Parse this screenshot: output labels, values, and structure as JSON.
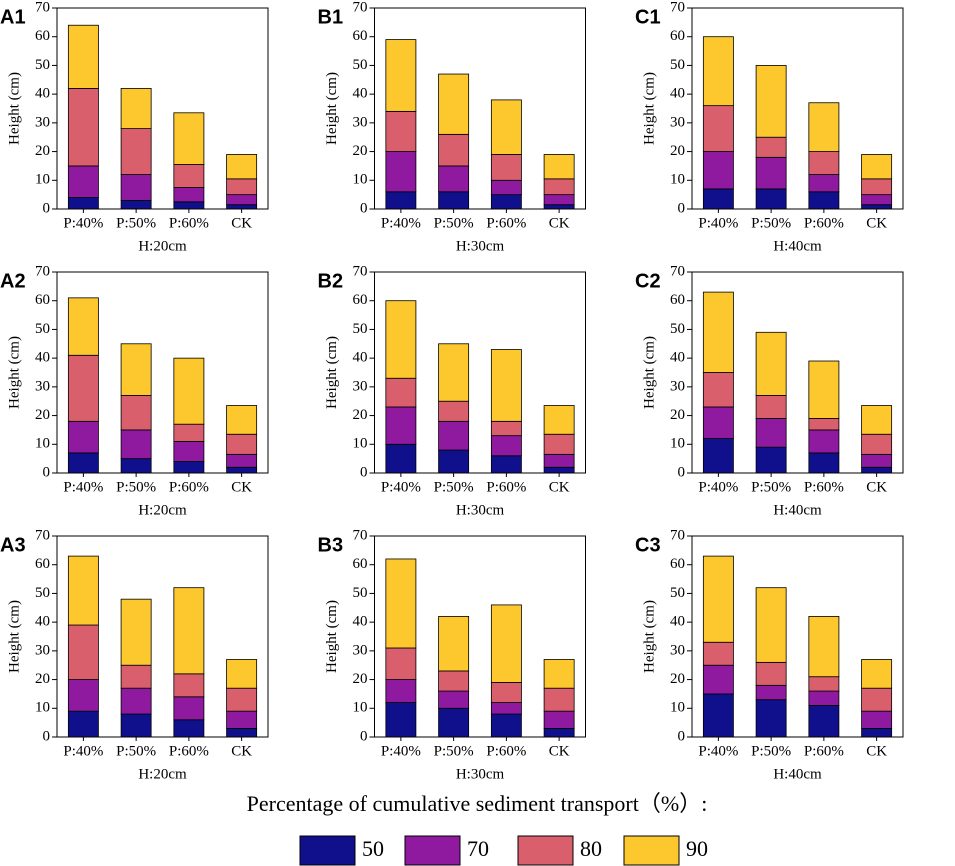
{
  "legend": {
    "title": "Percentage of cumulative sediment transport（%）:",
    "items": [
      {
        "name": "50",
        "color": "#10108c"
      },
      {
        "name": "70",
        "color": "#8f1aa0"
      },
      {
        "name": "80",
        "color": "#d95f6c"
      },
      {
        "name": "90",
        "color": "#fdc72e"
      }
    ]
  },
  "chart_data": [
    {
      "type": "bar",
      "panel": "A1",
      "ylabel": "Height (cm)",
      "xlabel": "H:20cm",
      "categories": [
        "P:40%",
        "P:50%",
        "P:60%",
        "CK"
      ],
      "ylim": [
        0,
        70
      ],
      "yticks": [
        0,
        10,
        20,
        30,
        40,
        50,
        60,
        70
      ],
      "series": [
        {
          "values": [
            4,
            3,
            2.5,
            1.5
          ]
        },
        {
          "values": [
            11,
            9,
            5,
            3.5
          ]
        },
        {
          "values": [
            27,
            16,
            8,
            5.5
          ]
        },
        {
          "values": [
            22,
            14,
            18,
            8.5
          ]
        }
      ]
    },
    {
      "type": "bar",
      "panel": "B1",
      "ylabel": "Height (cm)",
      "xlabel": "H:30cm",
      "categories": [
        "P:40%",
        "P:50%",
        "P:60%",
        "CK"
      ],
      "ylim": [
        0,
        70
      ],
      "yticks": [
        0,
        10,
        20,
        30,
        40,
        50,
        60,
        70
      ],
      "series": [
        {
          "values": [
            6,
            6,
            5,
            1.5
          ]
        },
        {
          "values": [
            14,
            9,
            5,
            3.5
          ]
        },
        {
          "values": [
            14,
            11,
            9,
            5.5
          ]
        },
        {
          "values": [
            25,
            21,
            19,
            8.5
          ]
        }
      ]
    },
    {
      "type": "bar",
      "panel": "C1",
      "ylabel": "Height (cm)",
      "xlabel": "H:40cm",
      "categories": [
        "P:40%",
        "P:50%",
        "P:60%",
        "CK"
      ],
      "ylim": [
        0,
        70
      ],
      "yticks": [
        0,
        10,
        20,
        30,
        40,
        50,
        60,
        70
      ],
      "series": [
        {
          "values": [
            7,
            7,
            6,
            1.5
          ]
        },
        {
          "values": [
            13,
            11,
            6,
            3.5
          ]
        },
        {
          "values": [
            16,
            7,
            8,
            5.5
          ]
        },
        {
          "values": [
            24,
            25,
            17,
            8.5
          ]
        }
      ]
    },
    {
      "type": "bar",
      "panel": "A2",
      "ylabel": "Height (cm)",
      "xlabel": "H:20cm",
      "categories": [
        "P:40%",
        "P:50%",
        "P:60%",
        "CK"
      ],
      "ylim": [
        0,
        70
      ],
      "yticks": [
        0,
        10,
        20,
        30,
        40,
        50,
        60,
        70
      ],
      "series": [
        {
          "values": [
            7,
            5,
            4,
            2
          ]
        },
        {
          "values": [
            11,
            10,
            7,
            4.5
          ]
        },
        {
          "values": [
            23,
            12,
            6,
            7
          ]
        },
        {
          "values": [
            20,
            18,
            23,
            10
          ]
        }
      ]
    },
    {
      "type": "bar",
      "panel": "B2",
      "ylabel": "Height (cm)",
      "xlabel": "H:30cm",
      "categories": [
        "P:40%",
        "P:50%",
        "P:60%",
        "CK"
      ],
      "ylim": [
        0,
        70
      ],
      "yticks": [
        0,
        10,
        20,
        30,
        40,
        50,
        60,
        70
      ],
      "series": [
        {
          "values": [
            10,
            8,
            6,
            2
          ]
        },
        {
          "values": [
            13,
            10,
            7,
            4.5
          ]
        },
        {
          "values": [
            10,
            7,
            5,
            7
          ]
        },
        {
          "values": [
            27,
            20,
            25,
            10
          ]
        }
      ]
    },
    {
      "type": "bar",
      "panel": "C2",
      "ylabel": "Height (cm)",
      "xlabel": "H:40cm",
      "categories": [
        "P:40%",
        "P:50%",
        "P:60%",
        "CK"
      ],
      "ylim": [
        0,
        70
      ],
      "yticks": [
        0,
        10,
        20,
        30,
        40,
        50,
        60,
        70
      ],
      "series": [
        {
          "values": [
            12,
            9,
            7,
            2
          ]
        },
        {
          "values": [
            11,
            10,
            8,
            4.5
          ]
        },
        {
          "values": [
            12,
            8,
            4,
            7
          ]
        },
        {
          "values": [
            28,
            22,
            20,
            10
          ]
        }
      ]
    },
    {
      "type": "bar",
      "panel": "A3",
      "ylabel": "Height (cm)",
      "xlabel": "H:20cm",
      "categories": [
        "P:40%",
        "P:50%",
        "P:60%",
        "CK"
      ],
      "ylim": [
        0,
        70
      ],
      "yticks": [
        0,
        10,
        20,
        30,
        40,
        50,
        60,
        70
      ],
      "series": [
        {
          "values": [
            9,
            8,
            6,
            3
          ]
        },
        {
          "values": [
            11,
            9,
            8,
            6
          ]
        },
        {
          "values": [
            19,
            8,
            8,
            8
          ]
        },
        {
          "values": [
            24,
            23,
            30,
            10
          ]
        }
      ]
    },
    {
      "type": "bar",
      "panel": "B3",
      "ylabel": "Height (cm)",
      "xlabel": "H:30cm",
      "categories": [
        "P:40%",
        "P:50%",
        "P:60%",
        "CK"
      ],
      "ylim": [
        0,
        70
      ],
      "yticks": [
        0,
        10,
        20,
        30,
        40,
        50,
        60,
        70
      ],
      "series": [
        {
          "values": [
            12,
            10,
            8,
            3
          ]
        },
        {
          "values": [
            8,
            6,
            4,
            6
          ]
        },
        {
          "values": [
            11,
            7,
            7,
            8
          ]
        },
        {
          "values": [
            31,
            19,
            27,
            10
          ]
        }
      ]
    },
    {
      "type": "bar",
      "panel": "C3",
      "ylabel": "Height (cm)",
      "xlabel": "H:40cm",
      "categories": [
        "P:40%",
        "P:50%",
        "P:60%",
        "CK"
      ],
      "ylim": [
        0,
        70
      ],
      "yticks": [
        0,
        10,
        20,
        30,
        40,
        50,
        60,
        70
      ],
      "series": [
        {
          "values": [
            15,
            13,
            11,
            3
          ]
        },
        {
          "values": [
            10,
            5,
            5,
            6
          ]
        },
        {
          "values": [
            8,
            8,
            5,
            8
          ]
        },
        {
          "values": [
            30,
            26,
            21,
            10
          ]
        }
      ]
    }
  ]
}
